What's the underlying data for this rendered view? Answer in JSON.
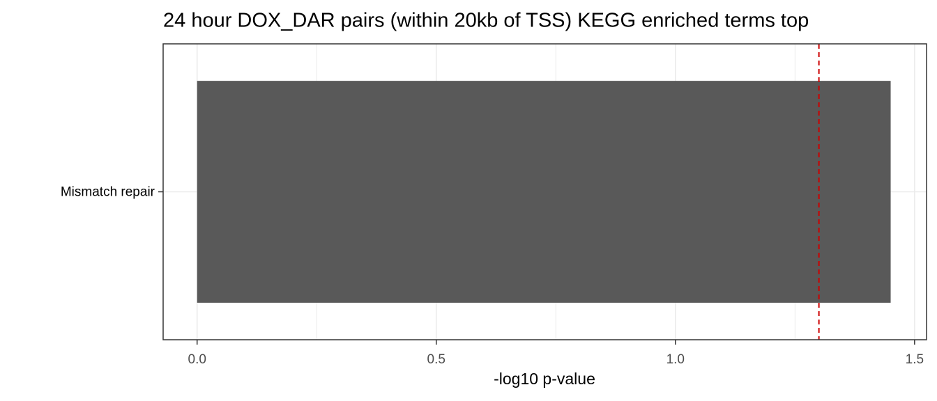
{
  "chart_data": {
    "type": "barh",
    "title": "24 hour DOX_DAR pairs (within 20kb of TSS) KEGG enriched terms top",
    "x_label": "-log10 p-value",
    "categories": [
      "Mismatch repair"
    ],
    "values": [
      1.45
    ],
    "color": "#595959",
    "xlim": [
      -0.071,
      1.525
    ],
    "xticks": [
      {
        "value": 0,
        "label": "0.0"
      },
      {
        "value": 0.5,
        "label": "0.5"
      },
      {
        "value": 1,
        "label": "1.0"
      },
      {
        "value": 1.5,
        "label": "1.5"
      }
    ],
    "xminorticks": [
      0.25,
      0.75,
      1.25
    ],
    "reference_line": {
      "value": 1.3,
      "color": "#cc0000",
      "style": "dashed"
    },
    "grid": true
  }
}
